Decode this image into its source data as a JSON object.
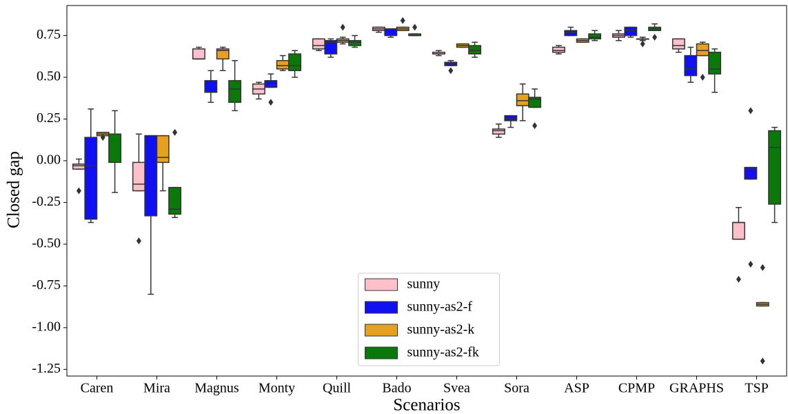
{
  "chart_data": {
    "type": "box",
    "ylabel": "Closed gap",
    "xlabel": "Scenarios",
    "categories": [
      "Caren",
      "Mira",
      "Magnus",
      "Monty",
      "Quill",
      "Bado",
      "Svea",
      "Sora",
      "ASP",
      "CPMP",
      "GRAPHS",
      "TSP"
    ],
    "ylim": [
      -1.29,
      0.93
    ],
    "yticks": [
      {
        "value": 0.75,
        "label": "0.75"
      },
      {
        "value": 0.5,
        "label": "0.50"
      },
      {
        "value": 0.25,
        "label": "0.25"
      },
      {
        "value": 0,
        "label": "0.00"
      },
      {
        "value": -0.25,
        "label": "-0.25"
      },
      {
        "value": -0.5,
        "label": "-0.50"
      },
      {
        "value": -0.75,
        "label": "-0.75"
      },
      {
        "value": -1.0,
        "label": "-1.00"
      },
      {
        "value": -1.25,
        "label": "-1.25"
      }
    ],
    "legend_loc": "lower center",
    "series": [
      {
        "name": "sunny",
        "color": "#ffc0cb",
        "boxes": [
          {
            "low": -0.05,
            "q1": -0.05,
            "median": -0.03,
            "q3": -0.02,
            "high": 0.01,
            "outliers": [
              -0.18
            ]
          },
          {
            "low": -0.18,
            "q1": -0.18,
            "median": -0.14,
            "q3": -0.01,
            "high": 0.16,
            "outliers": [
              -0.48
            ]
          },
          {
            "low": 0.61,
            "q1": 0.61,
            "median": 0.61,
            "q3": 0.67,
            "high": 0.68,
            "outliers": []
          },
          {
            "low": 0.37,
            "q1": 0.4,
            "median": 0.43,
            "q3": 0.46,
            "high": 0.47,
            "outliers": []
          },
          {
            "low": 0.66,
            "q1": 0.67,
            "median": 0.69,
            "q3": 0.73,
            "high": 0.73,
            "outliers": []
          },
          {
            "low": 0.77,
            "q1": 0.78,
            "median": 0.79,
            "q3": 0.8,
            "high": 0.8,
            "outliers": []
          },
          {
            "low": 0.63,
            "q1": 0.64,
            "median": 0.64,
            "q3": 0.65,
            "high": 0.66,
            "outliers": []
          },
          {
            "low": 0.14,
            "q1": 0.16,
            "median": 0.18,
            "q3": 0.19,
            "high": 0.22,
            "outliers": []
          },
          {
            "low": 0.64,
            "q1": 0.65,
            "median": 0.66,
            "q3": 0.68,
            "high": 0.69,
            "outliers": []
          },
          {
            "low": 0.72,
            "q1": 0.74,
            "median": 0.75,
            "q3": 0.76,
            "high": 0.78,
            "outliers": []
          },
          {
            "low": 0.65,
            "q1": 0.67,
            "median": 0.69,
            "q3": 0.73,
            "high": 0.73,
            "outliers": []
          },
          {
            "low": -0.47,
            "q1": -0.47,
            "median": -0.37,
            "q3": -0.37,
            "high": -0.28,
            "outliers": [
              -0.71
            ]
          }
        ]
      },
      {
        "name": "sunny-as2-f",
        "color": "#1010f0",
        "boxes": [
          {
            "low": -0.37,
            "q1": -0.35,
            "median": -0.03,
            "q3": 0.14,
            "high": 0.31,
            "outliers": []
          },
          {
            "low": -0.8,
            "q1": -0.33,
            "median": 0.15,
            "q3": 0.15,
            "high": 0.15,
            "outliers": []
          },
          {
            "low": 0.35,
            "q1": 0.41,
            "median": 0.41,
            "q3": 0.48,
            "high": 0.54,
            "outliers": []
          },
          {
            "low": 0.44,
            "q1": 0.44,
            "median": 0.45,
            "q3": 0.48,
            "high": 0.52,
            "outliers": [
              0.35
            ]
          },
          {
            "low": 0.62,
            "q1": 0.64,
            "median": 0.71,
            "q3": 0.72,
            "high": 0.73,
            "outliers": []
          },
          {
            "low": 0.74,
            "q1": 0.75,
            "median": 0.79,
            "q3": 0.79,
            "high": 0.79,
            "outliers": []
          },
          {
            "low": 0.57,
            "q1": 0.57,
            "median": 0.58,
            "q3": 0.59,
            "high": 0.6,
            "outliers": [
              0.54
            ]
          },
          {
            "low": 0.2,
            "q1": 0.24,
            "median": 0.25,
            "q3": 0.27,
            "high": 0.27,
            "outliers": []
          },
          {
            "low": 0.75,
            "q1": 0.75,
            "median": 0.77,
            "q3": 0.78,
            "high": 0.8,
            "outliers": []
          },
          {
            "low": 0.74,
            "q1": 0.75,
            "median": 0.78,
            "q3": 0.8,
            "high": 0.8,
            "outliers": []
          },
          {
            "low": 0.47,
            "q1": 0.51,
            "median": 0.55,
            "q3": 0.63,
            "high": 0.68,
            "outliers": []
          },
          {
            "low": -0.11,
            "q1": -0.11,
            "median": -0.05,
            "q3": -0.04,
            "high": -0.04,
            "outliers": [
              0.3,
              -0.62
            ]
          }
        ]
      },
      {
        "name": "sunny-as2-k",
        "color": "#e8a020",
        "boxes": [
          {
            "low": 0.15,
            "q1": 0.15,
            "median": 0.16,
            "q3": 0.17,
            "high": 0.17,
            "outliers": [
              0.14
            ]
          },
          {
            "low": -0.18,
            "q1": -0.01,
            "median": 0.02,
            "q3": 0.15,
            "high": 0.15,
            "outliers": []
          },
          {
            "low": 0.54,
            "q1": 0.61,
            "median": 0.66,
            "q3": 0.67,
            "high": 0.68,
            "outliers": []
          },
          {
            "low": 0.54,
            "q1": 0.55,
            "median": 0.57,
            "q3": 0.6,
            "high": 0.63,
            "outliers": []
          },
          {
            "low": 0.7,
            "q1": 0.71,
            "median": 0.72,
            "q3": 0.73,
            "high": 0.74,
            "outliers": [
              0.8
            ]
          },
          {
            "low": 0.78,
            "q1": 0.78,
            "median": 0.79,
            "q3": 0.8,
            "high": 0.8,
            "outliers": [
              0.84
            ]
          },
          {
            "low": 0.68,
            "q1": 0.68,
            "median": 0.69,
            "q3": 0.7,
            "high": 0.7,
            "outliers": []
          },
          {
            "low": 0.24,
            "q1": 0.33,
            "median": 0.36,
            "q3": 0.4,
            "high": 0.46,
            "outliers": []
          },
          {
            "low": 0.71,
            "q1": 0.71,
            "median": 0.72,
            "q3": 0.73,
            "high": 0.73,
            "outliers": []
          },
          {
            "low": 0.72,
            "q1": 0.73,
            "median": 0.73,
            "q3": 0.73,
            "high": 0.74,
            "outliers": [
              0.7
            ]
          },
          {
            "low": 0.63,
            "q1": 0.63,
            "median": 0.66,
            "q3": 0.7,
            "high": 0.71,
            "outliers": [
              0.5
            ]
          },
          {
            "low": -0.87,
            "q1": -0.87,
            "median": -0.86,
            "q3": -0.85,
            "high": -0.85,
            "outliers": [
              -0.64,
              -1.2
            ]
          }
        ]
      },
      {
        "name": "sunny-as2-fk",
        "color": "#0a780a",
        "boxes": [
          {
            "low": -0.19,
            "q1": -0.01,
            "median": 0.16,
            "q3": 0.16,
            "high": 0.3,
            "outliers": []
          },
          {
            "low": -0.34,
            "q1": -0.32,
            "median": -0.29,
            "q3": -0.16,
            "high": -0.16,
            "outliers": [
              0.17
            ]
          },
          {
            "low": 0.3,
            "q1": 0.35,
            "median": 0.43,
            "q3": 0.48,
            "high": 0.6,
            "outliers": []
          },
          {
            "low": 0.5,
            "q1": 0.54,
            "median": 0.57,
            "q3": 0.64,
            "high": 0.66,
            "outliers": []
          },
          {
            "low": 0.68,
            "q1": 0.69,
            "median": 0.71,
            "q3": 0.72,
            "high": 0.75,
            "outliers": []
          },
          {
            "low": 0.75,
            "q1": 0.75,
            "median": 0.75,
            "q3": 0.76,
            "high": 0.76,
            "outliers": [
              0.8
            ]
          },
          {
            "low": 0.62,
            "q1": 0.64,
            "median": 0.66,
            "q3": 0.69,
            "high": 0.71,
            "outliers": []
          },
          {
            "low": 0.32,
            "q1": 0.32,
            "median": 0.37,
            "q3": 0.38,
            "high": 0.43,
            "outliers": [
              0.21
            ]
          },
          {
            "low": 0.72,
            "q1": 0.73,
            "median": 0.74,
            "q3": 0.76,
            "high": 0.78,
            "outliers": []
          },
          {
            "low": 0.78,
            "q1": 0.78,
            "median": 0.79,
            "q3": 0.8,
            "high": 0.82,
            "outliers": [
              0.74
            ]
          },
          {
            "low": 0.41,
            "q1": 0.52,
            "median": 0.55,
            "q3": 0.65,
            "high": 0.67,
            "outliers": []
          },
          {
            "low": -0.37,
            "q1": -0.26,
            "median": 0.08,
            "q3": 0.18,
            "high": 0.2,
            "outliers": []
          }
        ]
      }
    ]
  }
}
